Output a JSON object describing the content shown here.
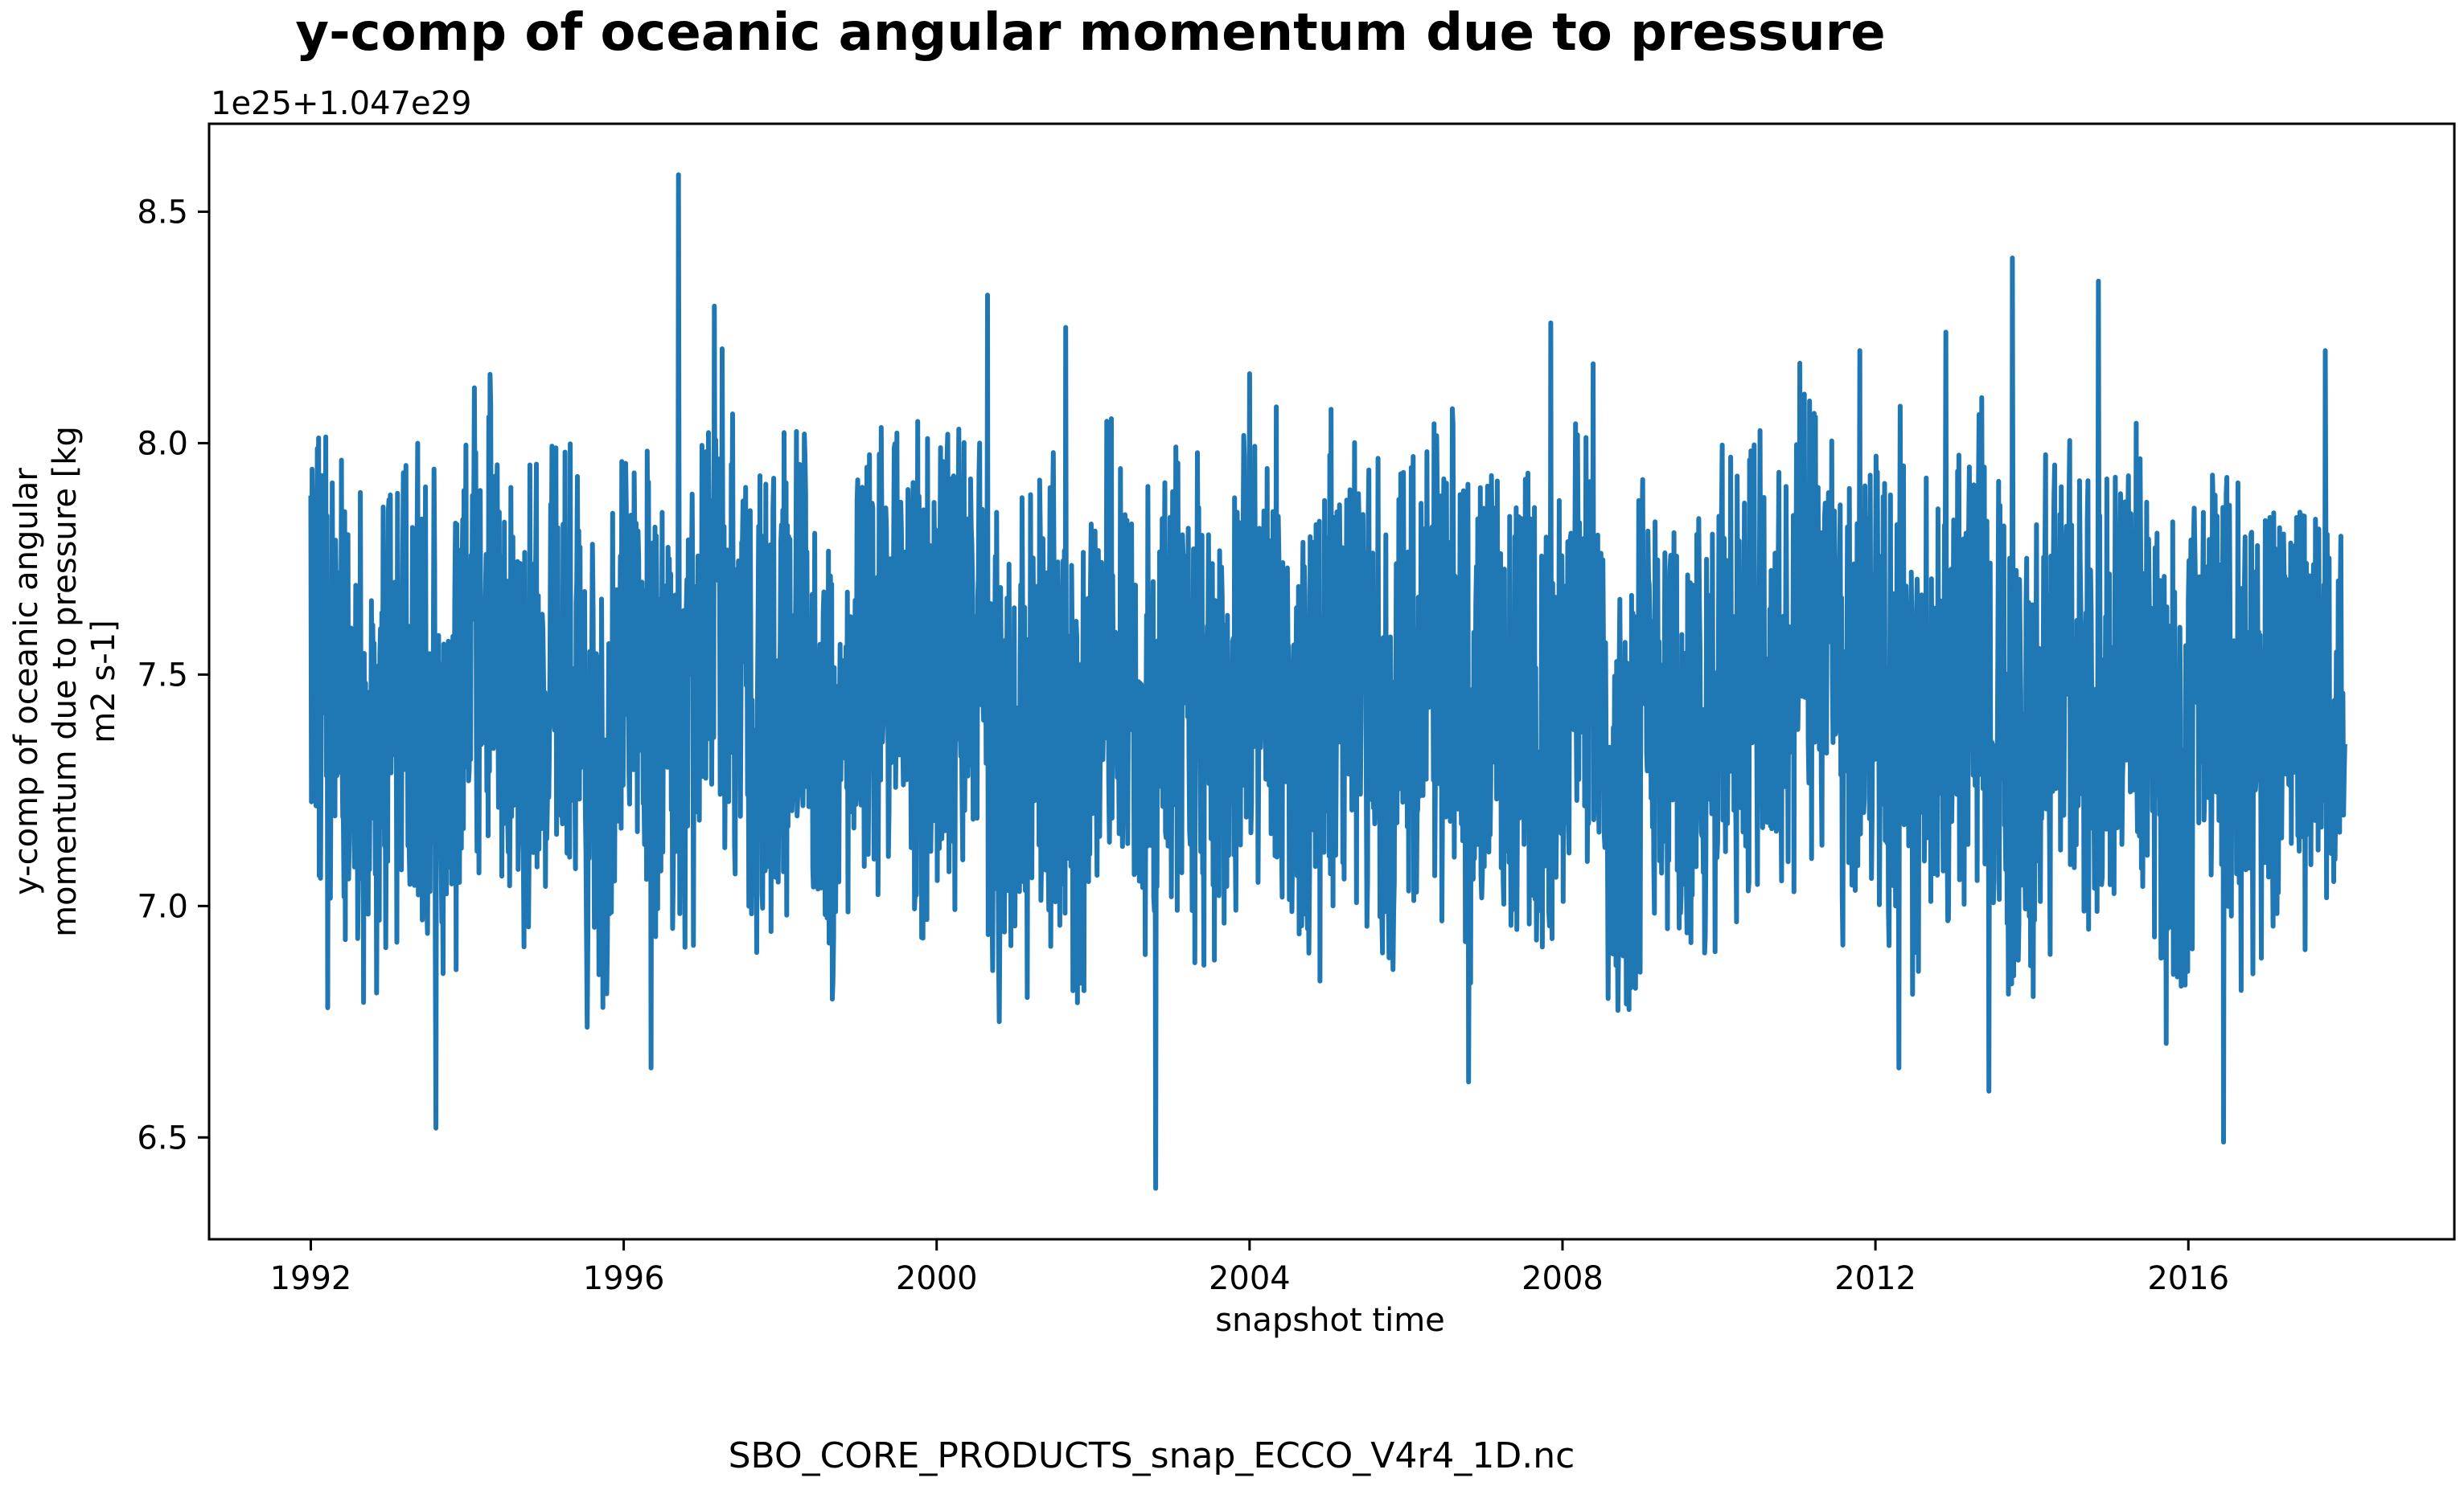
{
  "chart_data": {
    "type": "line",
    "title": "y-comp of oceanic angular momentum due to pressure",
    "xlabel": "snapshot time",
    "ylabel_lines": [
      "y-comp of oceanic angular",
      "momentum due to pressure [kg",
      "m2 s-1]"
    ],
    "offset_text": "1e25+1.047e29",
    "xlim": [
      1990.7,
      2019.4
    ],
    "ylim": [
      6.28,
      8.69
    ],
    "x_ticks": [
      1992,
      1996,
      2000,
      2004,
      2008,
      2012,
      2016
    ],
    "x_tick_labels": [
      "1992",
      "1996",
      "2000",
      "2004",
      "2008",
      "2012",
      "2016"
    ],
    "y_ticks": [
      6.5,
      7.0,
      7.5,
      8.0,
      8.5
    ],
    "y_tick_labels": [
      "6.5",
      "7.0",
      "7.5",
      "8.0",
      "8.5"
    ],
    "grid": false,
    "series": [
      {
        "color": "#1f77b4",
        "x_range": [
          1992.0,
          2018.0
        ],
        "points_per_year": 120,
        "extrema": [
          {
            "x": 1992.05,
            "y": 7.88
          },
          {
            "x": 1992.22,
            "y": 6.78
          },
          {
            "x": 1993.6,
            "y": 6.52
          },
          {
            "x": 1996.7,
            "y": 8.58
          },
          {
            "x": 1996.35,
            "y": 6.65
          },
          {
            "x": 2000.65,
            "y": 8.32
          },
          {
            "x": 2000.8,
            "y": 6.75
          },
          {
            "x": 2001.65,
            "y": 8.25
          },
          {
            "x": 2002.8,
            "y": 6.39
          },
          {
            "x": 2004.0,
            "y": 8.15
          },
          {
            "x": 2006.8,
            "y": 6.62
          },
          {
            "x": 2007.85,
            "y": 8.26
          },
          {
            "x": 2011.8,
            "y": 8.2
          },
          {
            "x": 2012.3,
            "y": 6.65
          },
          {
            "x": 2012.9,
            "y": 8.24
          },
          {
            "x": 2013.45,
            "y": 6.6
          },
          {
            "x": 2013.75,
            "y": 8.4
          },
          {
            "x": 2014.85,
            "y": 8.35
          },
          {
            "x": 2016.45,
            "y": 6.49
          },
          {
            "x": 2017.75,
            "y": 8.2
          },
          {
            "x": 2018.0,
            "y": 7.35
          }
        ]
      }
    ]
  },
  "footer": {
    "filename": "SBO_CORE_PRODUCTS_snap_ECCO_V4r4_1D.nc"
  }
}
